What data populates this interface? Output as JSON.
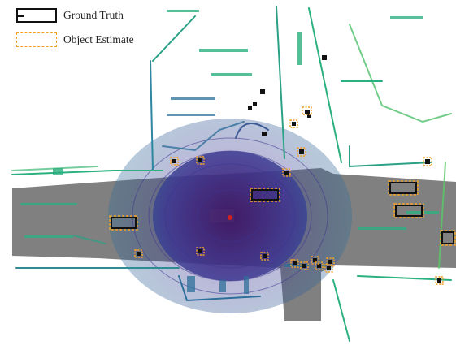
{
  "legend": {
    "ground_truth_label": "Ground Truth",
    "estimate_label": "Object Estimate"
  },
  "colors": {
    "ground_truth": "#111111",
    "object_estimate": "#f2a229",
    "road": "#808080",
    "ego": "#d0201f",
    "lidar_near": "#3b1a6b",
    "lidar_mid": "#2e6f9a",
    "lidar_far": "#2bb07f"
  },
  "scene": {
    "description_free": true,
    "object_count_vehicles": 8,
    "object_count_pedestrians": 18
  }
}
